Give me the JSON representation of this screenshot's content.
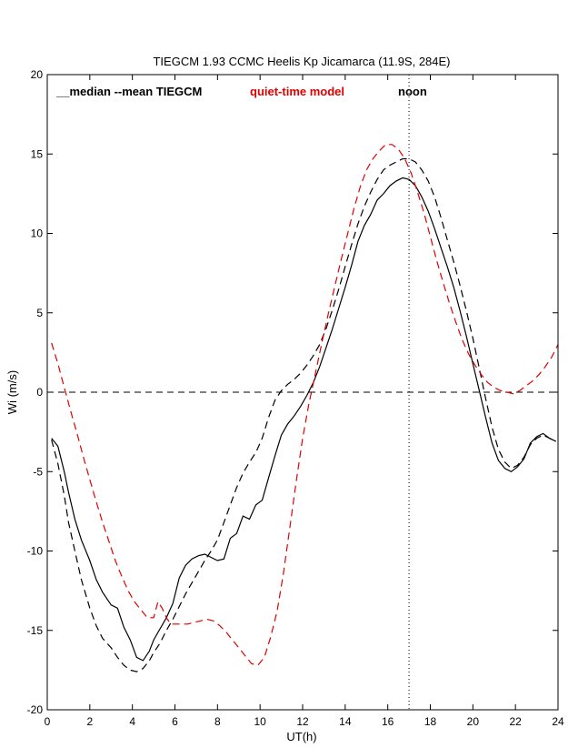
{
  "chart_data": {
    "type": "line",
    "title": "TIEGCM 1.93 CCMC Heelis Kp Jicamarca (11.9S, 284E)",
    "xlabel": "UT(h)",
    "ylabel": "Wi (m/s)",
    "xlim": [
      0,
      24
    ],
    "ylim": [
      -20,
      20
    ],
    "xticks": [
      0,
      2,
      4,
      6,
      8,
      10,
      12,
      14,
      16,
      18,
      20,
      22,
      24
    ],
    "yticks": [
      -20,
      -15,
      -10,
      -5,
      0,
      5,
      10,
      15,
      20
    ],
    "grid": false,
    "noon_ut": 17,
    "annotations": {
      "tiegcm": "__median --mean TIEGCM",
      "quiet": "quiet-time model",
      "noon": "noon"
    },
    "colors": {
      "median": "#000000",
      "mean": "#000000",
      "quiet": "#e00000"
    },
    "series": [
      {
        "key": "median",
        "style": "solid",
        "x": [
          0.2,
          0.5,
          0.8,
          1.0,
          1.3,
          1.6,
          2.0,
          2.3,
          2.6,
          3.0,
          3.3,
          3.6,
          3.9,
          4.2,
          4.5,
          4.8,
          5.0,
          5.3,
          5.6,
          5.9,
          6.2,
          6.5,
          6.8,
          7.1,
          7.4,
          7.7,
          8.0,
          8.3,
          8.6,
          8.9,
          9.2,
          9.5,
          9.8,
          10.1,
          10.4,
          10.7,
          11.0,
          11.3,
          11.6,
          11.9,
          12.2,
          12.5,
          12.8,
          13.1,
          13.4,
          13.7,
          14.0,
          14.3,
          14.6,
          14.9,
          15.2,
          15.5,
          15.8,
          16.1,
          16.4,
          16.7,
          17.0,
          17.3,
          17.6,
          17.9,
          18.2,
          18.5,
          18.8,
          19.1,
          19.4,
          19.7,
          20.0,
          20.3,
          20.6,
          20.9,
          21.2,
          21.5,
          21.8,
          22.1,
          22.4,
          22.7,
          23.0,
          23.3,
          23.6,
          23.9
        ],
        "y": [
          -2.9,
          -3.4,
          -5.0,
          -6.3,
          -8.0,
          -9.3,
          -10.6,
          -11.8,
          -12.6,
          -13.4,
          -13.6,
          -14.8,
          -15.6,
          -16.7,
          -16.9,
          -16.3,
          -15.6,
          -14.9,
          -14.2,
          -13.3,
          -11.7,
          -10.9,
          -10.5,
          -10.3,
          -10.2,
          -10.4,
          -10.6,
          -10.5,
          -9.2,
          -8.9,
          -7.8,
          -8.0,
          -7.1,
          -6.8,
          -5.4,
          -4.0,
          -2.7,
          -2.0,
          -1.5,
          -0.9,
          -0.2,
          0.6,
          1.6,
          2.8,
          4.0,
          5.3,
          6.6,
          8.0,
          9.5,
          10.5,
          11.2,
          12.1,
          12.5,
          13.0,
          13.3,
          13.5,
          13.4,
          13.0,
          12.3,
          11.4,
          10.3,
          9.1,
          7.9,
          6.6,
          5.1,
          3.5,
          1.8,
          0.1,
          -1.6,
          -3.2,
          -4.3,
          -4.8,
          -5.0,
          -4.7,
          -4.2,
          -3.2,
          -2.8,
          -2.6,
          -2.9,
          -3.1
        ]
      },
      {
        "key": "mean",
        "style": "dashed",
        "x": [
          0.2,
          0.5,
          0.8,
          1.0,
          1.3,
          1.6,
          2.0,
          2.3,
          2.6,
          3.0,
          3.3,
          3.6,
          3.9,
          4.2,
          4.5,
          4.8,
          5.0,
          5.3,
          5.6,
          5.9,
          6.2,
          6.5,
          6.8,
          7.1,
          7.4,
          7.7,
          8.0,
          8.3,
          8.6,
          8.9,
          9.2,
          9.5,
          9.8,
          10.1,
          10.4,
          10.7,
          11.0,
          11.3,
          11.6,
          11.9,
          12.2,
          12.5,
          12.8,
          13.1,
          13.4,
          13.7,
          14.0,
          14.3,
          14.6,
          14.9,
          15.2,
          15.5,
          15.8,
          16.1,
          16.4,
          16.7,
          17.0,
          17.3,
          17.6,
          17.9,
          18.2,
          18.5,
          18.8,
          19.1,
          19.4,
          19.7,
          20.0,
          20.3,
          20.6,
          20.9,
          21.2,
          21.5,
          21.8,
          22.1,
          22.4,
          22.7,
          23.0,
          23.3,
          23.6,
          23.9
        ],
        "y": [
          -3.0,
          -4.5,
          -6.5,
          -8.2,
          -10.0,
          -11.8,
          -13.6,
          -14.7,
          -15.5,
          -16.1,
          -16.7,
          -17.2,
          -17.5,
          -17.6,
          -17.4,
          -16.9,
          -16.4,
          -15.8,
          -15.0,
          -14.3,
          -13.5,
          -12.7,
          -12.0,
          -11.3,
          -10.6,
          -10.0,
          -9.3,
          -8.2,
          -7.1,
          -6.0,
          -5.1,
          -4.4,
          -3.8,
          -2.9,
          -1.6,
          -0.5,
          0.1,
          0.5,
          0.8,
          1.2,
          1.7,
          2.3,
          3.0,
          4.0,
          5.2,
          6.5,
          7.9,
          9.3,
          10.6,
          11.7,
          12.6,
          13.4,
          14.0,
          14.3,
          14.5,
          14.7,
          14.7,
          14.5,
          14.0,
          13.3,
          12.3,
          11.0,
          9.6,
          8.2,
          6.7,
          5.1,
          3.4,
          1.5,
          -0.4,
          -2.2,
          -3.6,
          -4.4,
          -4.8,
          -4.6,
          -4.1,
          -3.3,
          -2.9,
          -2.7,
          -2.9,
          -3.1
        ]
      },
      {
        "key": "quiet",
        "style": "dashed",
        "x": [
          0.2,
          0.5,
          0.8,
          1.1,
          1.4,
          1.7,
          2.0,
          2.3,
          2.6,
          2.9,
          3.2,
          3.5,
          3.8,
          4.1,
          4.4,
          4.7,
          5.0,
          5.2,
          5.4,
          5.6,
          5.8,
          6.0,
          6.3,
          6.6,
          6.9,
          7.2,
          7.5,
          7.8,
          8.1,
          8.4,
          8.7,
          9.0,
          9.3,
          9.6,
          9.9,
          10.2,
          10.5,
          10.8,
          11.1,
          11.4,
          11.7,
          12.0,
          12.3,
          12.6,
          12.9,
          13.2,
          13.5,
          13.8,
          14.1,
          14.4,
          14.7,
          15.0,
          15.3,
          15.6,
          15.9,
          16.2,
          16.5,
          16.8,
          17.1,
          17.4,
          17.7,
          18.0,
          18.3,
          18.6,
          18.9,
          19.2,
          19.5,
          19.8,
          20.1,
          20.4,
          20.7,
          21.0,
          21.3,
          21.6,
          21.9,
          22.2,
          22.5,
          22.8,
          23.1,
          23.4,
          23.7,
          24.0
        ],
        "y": [
          3.1,
          1.8,
          0.3,
          -1.2,
          -2.6,
          -4.1,
          -5.5,
          -6.9,
          -8.2,
          -9.4,
          -10.6,
          -11.6,
          -12.5,
          -13.2,
          -13.7,
          -14.2,
          -14.2,
          -13.2,
          -13.6,
          -14.2,
          -14.6,
          -14.6,
          -14.6,
          -14.6,
          -14.5,
          -14.4,
          -14.3,
          -14.4,
          -14.7,
          -15.1,
          -15.6,
          -16.1,
          -16.6,
          -17.1,
          -17.2,
          -16.7,
          -15.4,
          -13.8,
          -11.4,
          -8.5,
          -5.6,
          -2.9,
          -0.7,
          1.2,
          3.1,
          4.9,
          6.6,
          8.3,
          9.9,
          11.5,
          12.9,
          14.0,
          14.7,
          15.2,
          15.6,
          15.6,
          15.3,
          14.7,
          13.8,
          12.6,
          11.3,
          9.8,
          8.3,
          6.9,
          5.6,
          4.4,
          3.3,
          2.4,
          1.7,
          1.1,
          0.6,
          0.3,
          0.1,
          0.0,
          -0.1,
          0.1,
          0.4,
          0.7,
          1.1,
          1.6,
          2.2,
          3.0
        ]
      }
    ]
  }
}
